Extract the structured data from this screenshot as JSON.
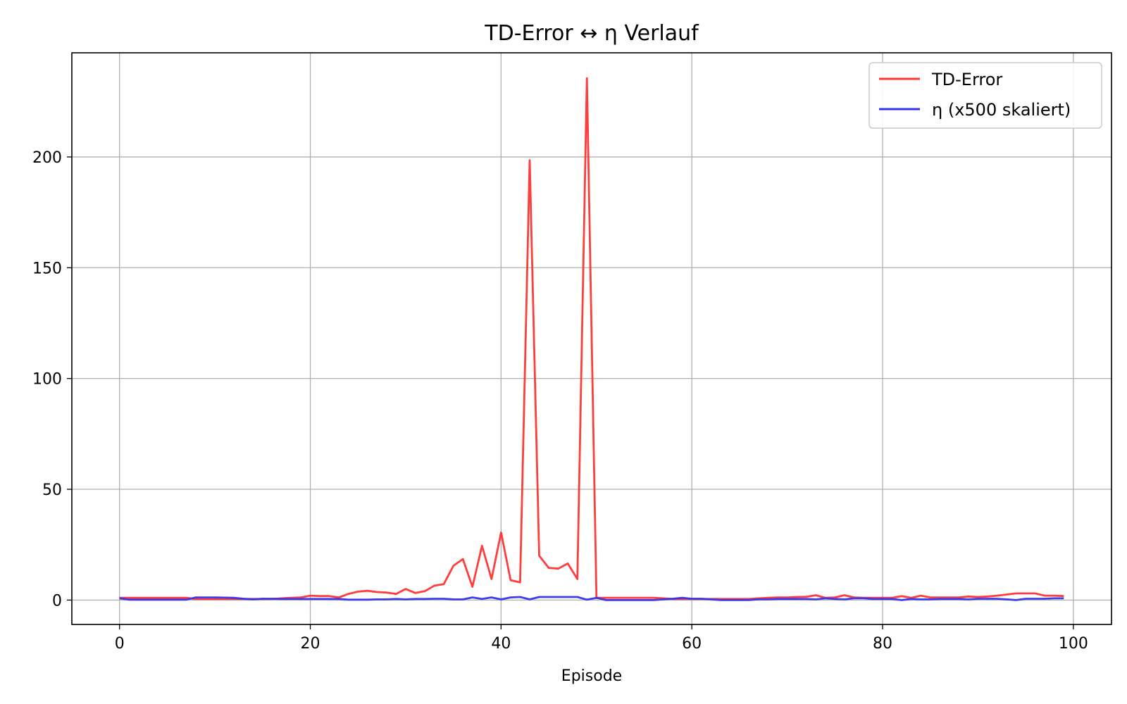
{
  "chart_data": {
    "type": "line",
    "title": "TD-Error ↔ η Verlauf",
    "xlabel": "Episode",
    "ylabel": "",
    "xlim": [
      -5,
      104
    ],
    "ylim": [
      -11,
      247
    ],
    "xticks": [
      0,
      20,
      40,
      60,
      80,
      100
    ],
    "yticks": [
      0,
      50,
      100,
      150,
      200
    ],
    "grid": true,
    "legend_position": "top-right",
    "series": [
      {
        "name": "TD-Error",
        "color": "#ff3333",
        "x": [
          0,
          1,
          2,
          3,
          4,
          5,
          6,
          7,
          8,
          9,
          10,
          11,
          12,
          13,
          14,
          15,
          16,
          17,
          18,
          19,
          20,
          21,
          22,
          23,
          24,
          25,
          26,
          27,
          28,
          29,
          30,
          31,
          32,
          33,
          34,
          35,
          36,
          37,
          38,
          39,
          40,
          41,
          42,
          43,
          44,
          45,
          46,
          47,
          48,
          49,
          50,
          51,
          52,
          53,
          54,
          55,
          56,
          57,
          58,
          59,
          60,
          61,
          62,
          63,
          64,
          65,
          66,
          67,
          68,
          69,
          70,
          71,
          72,
          73,
          74,
          75,
          76,
          77,
          78,
          79,
          80,
          81,
          82,
          83,
          84,
          85,
          86,
          87,
          88,
          89,
          90,
          91,
          92,
          93,
          94,
          95,
          96,
          97,
          98,
          99
        ],
        "values": [
          1.0,
          1.0,
          1.0,
          1.0,
          1.0,
          1.0,
          1.0,
          1.0,
          0.5,
          0.5,
          0.5,
          0.5,
          0.5,
          0.5,
          0.5,
          0.5,
          0.5,
          0.8,
          1.0,
          1.2,
          2.0,
          1.8,
          1.8,
          1.2,
          2.8,
          3.8,
          4.2,
          3.6,
          3.4,
          2.8,
          5.0,
          3.2,
          4.0,
          6.5,
          7.2,
          15.5,
          18.5,
          6.0,
          24.5,
          9.5,
          30.5,
          9.0,
          8.0,
          198.5,
          20.0,
          14.5,
          14.2,
          16.5,
          9.5,
          235.5,
          1.0,
          1.0,
          1.0,
          1.0,
          1.0,
          1.0,
          1.0,
          0.8,
          0.5,
          0.5,
          0.5,
          0.5,
          0.5,
          0.5,
          0.5,
          0.5,
          0.5,
          0.8,
          1.0,
          1.2,
          1.2,
          1.4,
          1.5,
          2.2,
          1.0,
          1.2,
          2.2,
          1.2,
          1.0,
          1.0,
          1.0,
          1.0,
          1.8,
          1.0,
          2.0,
          1.2,
          1.2,
          1.2,
          1.2,
          1.6,
          1.4,
          1.6,
          2.0,
          2.5,
          3.0,
          3.0,
          3.0,
          2.0,
          2.0,
          1.8
        ]
      },
      {
        "name": "η (x500 skaliert)",
        "color": "#3333ee",
        "x": [
          0,
          1,
          2,
          3,
          4,
          5,
          6,
          7,
          8,
          9,
          10,
          11,
          12,
          13,
          14,
          15,
          16,
          17,
          18,
          19,
          20,
          21,
          22,
          23,
          24,
          25,
          26,
          27,
          28,
          29,
          30,
          31,
          32,
          33,
          34,
          35,
          36,
          37,
          38,
          39,
          40,
          41,
          42,
          43,
          44,
          45,
          46,
          47,
          48,
          49,
          50,
          51,
          52,
          53,
          54,
          55,
          56,
          57,
          58,
          59,
          60,
          61,
          62,
          63,
          64,
          65,
          66,
          67,
          68,
          69,
          70,
          71,
          72,
          73,
          74,
          75,
          76,
          77,
          78,
          79,
          80,
          81,
          82,
          83,
          84,
          85,
          86,
          87,
          88,
          89,
          90,
          91,
          92,
          93,
          94,
          95,
          96,
          97,
          98,
          99
        ],
        "values": [
          0.8,
          0.2,
          0.2,
          0.2,
          0.2,
          0.2,
          0.2,
          0.2,
          1.2,
          1.2,
          1.2,
          1.1,
          1.0,
          0.6,
          0.3,
          0.6,
          0.6,
          0.5,
          0.5,
          0.5,
          0.5,
          0.5,
          0.5,
          0.5,
          0.2,
          0.2,
          0.2,
          0.3,
          0.3,
          0.5,
          0.3,
          0.5,
          0.5,
          0.6,
          0.6,
          0.3,
          0.3,
          1.2,
          0.5,
          1.2,
          0.3,
          1.2,
          1.4,
          0.3,
          1.4,
          1.4,
          1.4,
          1.4,
          1.4,
          0.2,
          1.0,
          0.0,
          0.0,
          0.0,
          0.0,
          0.0,
          0.0,
          0.3,
          0.6,
          1.0,
          0.6,
          0.6,
          0.3,
          0.0,
          0.0,
          0.0,
          0.0,
          0.3,
          0.3,
          0.5,
          0.5,
          0.5,
          0.5,
          0.3,
          0.8,
          0.5,
          0.3,
          0.8,
          0.8,
          0.5,
          0.5,
          0.5,
          0.0,
          0.5,
          0.3,
          0.3,
          0.5,
          0.5,
          0.5,
          0.3,
          0.6,
          0.6,
          0.6,
          0.3,
          0.0,
          0.6,
          0.6,
          0.6,
          0.8,
          0.8
        ]
      }
    ]
  }
}
